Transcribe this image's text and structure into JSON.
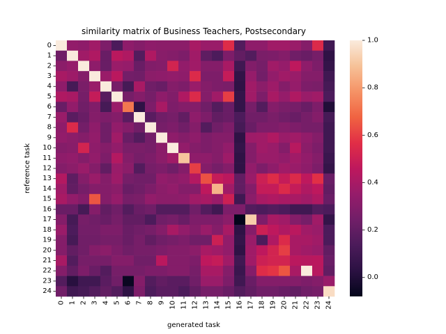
{
  "chart_data": {
    "type": "heatmap",
    "title": "similarity matrix of Business Teachers, Postsecondary",
    "xlabel": "generated task",
    "ylabel": "reference task",
    "x_categories": [
      "0",
      "1",
      "2",
      "3",
      "4",
      "5",
      "6",
      "7",
      "8",
      "9",
      "10",
      "11",
      "12",
      "13",
      "14",
      "15",
      "16",
      "17",
      "18",
      "19",
      "20",
      "21",
      "22",
      "23",
      "24"
    ],
    "y_categories": [
      "0",
      "1",
      "2",
      "3",
      "4",
      "5",
      "6",
      "7",
      "8",
      "9",
      "10",
      "11",
      "12",
      "13",
      "14",
      "15",
      "16",
      "17",
      "18",
      "19",
      "20",
      "21",
      "22",
      "23",
      "24"
    ],
    "colorbar": {
      "min": -0.08,
      "max": 1.0,
      "ticks": [
        0.0,
        0.2,
        0.4,
        0.6,
        0.8,
        1.0
      ],
      "tick_labels": [
        "0.0",
        "0.2",
        "0.4",
        "0.6",
        "0.8",
        "1.0"
      ]
    },
    "values": [
      [
        1.0,
        0.34,
        0.33,
        0.38,
        0.28,
        0.14,
        0.33,
        0.3,
        0.33,
        0.32,
        0.32,
        0.32,
        0.4,
        0.36,
        0.36,
        0.56,
        0.16,
        0.33,
        0.33,
        0.38,
        0.38,
        0.36,
        0.3,
        0.55,
        0.1
      ],
      [
        0.24,
        1.0,
        0.38,
        0.42,
        0.22,
        0.45,
        0.42,
        0.16,
        0.42,
        0.31,
        0.3,
        0.28,
        0.38,
        0.19,
        0.14,
        0.28,
        0.2,
        0.16,
        0.27,
        0.28,
        0.3,
        0.24,
        0.22,
        0.26,
        0.04
      ],
      [
        0.32,
        0.35,
        1.0,
        0.33,
        0.22,
        0.36,
        0.35,
        0.22,
        0.29,
        0.3,
        0.52,
        0.34,
        0.38,
        0.3,
        0.3,
        0.4,
        0.1,
        0.29,
        0.26,
        0.38,
        0.35,
        0.46,
        0.33,
        0.28,
        0.06
      ],
      [
        0.4,
        0.37,
        0.3,
        1.0,
        0.36,
        0.45,
        0.25,
        0.24,
        0.32,
        0.33,
        0.34,
        0.33,
        0.55,
        0.28,
        0.28,
        0.48,
        0.05,
        0.35,
        0.25,
        0.34,
        0.38,
        0.36,
        0.3,
        0.3,
        0.1
      ],
      [
        0.33,
        0.12,
        0.27,
        0.36,
        1.0,
        0.26,
        0.12,
        0.4,
        0.24,
        0.22,
        0.3,
        0.28,
        0.36,
        0.3,
        0.28,
        0.27,
        0.04,
        0.38,
        0.32,
        0.37,
        0.3,
        0.35,
        0.28,
        0.27,
        0.12
      ],
      [
        0.42,
        0.4,
        0.26,
        0.48,
        0.17,
        1.0,
        0.26,
        0.3,
        0.26,
        0.33,
        0.29,
        0.42,
        0.55,
        0.3,
        0.38,
        0.6,
        0.06,
        0.38,
        0.28,
        0.4,
        0.35,
        0.42,
        0.36,
        0.38,
        0.14
      ],
      [
        0.22,
        0.34,
        0.24,
        0.29,
        0.12,
        0.36,
        0.72,
        0.04,
        0.28,
        0.4,
        0.28,
        0.3,
        0.3,
        0.24,
        0.16,
        0.22,
        0.06,
        0.26,
        0.16,
        0.3,
        0.27,
        0.26,
        0.22,
        0.28,
        0.0
      ],
      [
        0.36,
        0.18,
        0.22,
        0.3,
        0.28,
        0.3,
        0.18,
        1.0,
        0.18,
        0.24,
        0.26,
        0.2,
        0.33,
        0.28,
        0.2,
        0.22,
        0.14,
        0.24,
        0.24,
        0.27,
        0.24,
        0.22,
        0.26,
        0.3,
        0.12
      ],
      [
        0.33,
        0.55,
        0.25,
        0.33,
        0.24,
        0.34,
        0.3,
        0.24,
        1.0,
        0.26,
        0.28,
        0.24,
        0.3,
        0.16,
        0.24,
        0.28,
        0.12,
        0.22,
        0.28,
        0.28,
        0.3,
        0.28,
        0.26,
        0.26,
        0.1
      ],
      [
        0.34,
        0.32,
        0.3,
        0.34,
        0.24,
        0.38,
        0.22,
        0.16,
        0.25,
        1.0,
        0.33,
        0.3,
        0.33,
        0.28,
        0.3,
        0.3,
        0.04,
        0.37,
        0.38,
        0.42,
        0.36,
        0.38,
        0.34,
        0.3,
        0.1
      ],
      [
        0.3,
        0.31,
        0.52,
        0.33,
        0.3,
        0.34,
        0.27,
        0.27,
        0.26,
        0.32,
        1.0,
        0.34,
        0.3,
        0.28,
        0.3,
        0.34,
        0.06,
        0.3,
        0.38,
        0.36,
        0.3,
        0.44,
        0.32,
        0.28,
        0.1
      ],
      [
        0.33,
        0.34,
        0.3,
        0.34,
        0.28,
        0.43,
        0.3,
        0.26,
        0.28,
        0.32,
        0.38,
        0.9,
        0.33,
        0.33,
        0.3,
        0.37,
        0.04,
        0.3,
        0.36,
        0.36,
        0.34,
        0.38,
        0.34,
        0.3,
        0.08
      ],
      [
        0.3,
        0.32,
        0.36,
        0.3,
        0.2,
        0.36,
        0.32,
        0.16,
        0.26,
        0.28,
        0.24,
        0.3,
        0.6,
        0.3,
        0.26,
        0.3,
        0.04,
        0.34,
        0.28,
        0.33,
        0.38,
        0.36,
        0.33,
        0.28,
        0.06
      ],
      [
        0.43,
        0.19,
        0.3,
        0.36,
        0.3,
        0.37,
        0.26,
        0.24,
        0.24,
        0.34,
        0.32,
        0.34,
        0.43,
        0.64,
        0.48,
        0.45,
        0.2,
        0.36,
        0.5,
        0.56,
        0.48,
        0.55,
        0.46,
        0.57,
        0.22
      ],
      [
        0.38,
        0.2,
        0.26,
        0.3,
        0.3,
        0.32,
        0.22,
        0.24,
        0.28,
        0.32,
        0.34,
        0.3,
        0.3,
        0.46,
        0.86,
        0.38,
        0.2,
        0.3,
        0.48,
        0.48,
        0.55,
        0.48,
        0.42,
        0.46,
        0.2
      ],
      [
        0.4,
        0.34,
        0.3,
        0.65,
        0.3,
        0.35,
        0.26,
        0.27,
        0.34,
        0.32,
        0.32,
        0.33,
        0.38,
        0.4,
        0.36,
        0.5,
        0.1,
        0.32,
        0.4,
        0.42,
        0.4,
        0.4,
        0.38,
        0.42,
        0.22
      ],
      [
        0.22,
        0.22,
        0.12,
        0.3,
        0.2,
        0.24,
        0.16,
        0.22,
        0.24,
        0.16,
        0.16,
        0.16,
        0.24,
        0.16,
        0.1,
        0.28,
        0.28,
        0.16,
        0.14,
        0.16,
        0.14,
        0.1,
        0.1,
        0.16,
        0.14
      ],
      [
        0.3,
        0.12,
        0.26,
        0.24,
        0.22,
        0.26,
        0.2,
        0.2,
        0.14,
        0.24,
        0.26,
        0.22,
        0.28,
        0.28,
        0.28,
        0.32,
        -0.08,
        0.92,
        0.28,
        0.4,
        0.38,
        0.3,
        0.26,
        0.38,
        0.06
      ],
      [
        0.36,
        0.14,
        0.25,
        0.25,
        0.28,
        0.28,
        0.22,
        0.24,
        0.26,
        0.3,
        0.4,
        0.34,
        0.3,
        0.36,
        0.3,
        0.4,
        0.04,
        0.3,
        0.5,
        0.46,
        0.42,
        0.45,
        0.38,
        0.36,
        0.14
      ],
      [
        0.3,
        0.12,
        0.24,
        0.24,
        0.26,
        0.26,
        0.22,
        0.26,
        0.2,
        0.24,
        0.26,
        0.28,
        0.24,
        0.24,
        0.5,
        0.34,
        0.06,
        0.36,
        0.14,
        0.42,
        0.55,
        0.4,
        0.4,
        0.38,
        0.14
      ],
      [
        0.3,
        0.2,
        0.24,
        0.3,
        0.32,
        0.28,
        0.24,
        0.26,
        0.26,
        0.28,
        0.3,
        0.3,
        0.32,
        0.4,
        0.38,
        0.34,
        0.04,
        0.38,
        0.46,
        0.52,
        0.6,
        0.4,
        0.38,
        0.36,
        0.2
      ],
      [
        0.4,
        0.16,
        0.26,
        0.26,
        0.26,
        0.3,
        0.3,
        0.24,
        0.24,
        0.45,
        0.3,
        0.3,
        0.28,
        0.46,
        0.48,
        0.38,
        0.1,
        0.38,
        0.5,
        0.52,
        0.52,
        0.45,
        0.44,
        0.45,
        0.22
      ],
      [
        0.3,
        0.2,
        0.28,
        0.22,
        0.16,
        0.26,
        0.26,
        0.26,
        0.28,
        0.28,
        0.3,
        0.3,
        0.26,
        0.4,
        0.4,
        0.3,
        0.08,
        0.3,
        0.56,
        0.58,
        0.65,
        0.4,
        1.0,
        0.44,
        0.2
      ],
      [
        0.16,
        0.02,
        0.1,
        0.1,
        0.18,
        0.24,
        -0.06,
        0.3,
        0.16,
        0.2,
        0.18,
        0.18,
        0.24,
        0.36,
        0.36,
        0.28,
        0.1,
        0.22,
        0.3,
        0.3,
        0.3,
        0.3,
        0.28,
        0.3,
        0.36
      ],
      [
        0.24,
        0.1,
        0.12,
        0.16,
        0.2,
        0.16,
        0.04,
        0.28,
        0.14,
        0.18,
        0.18,
        0.14,
        0.2,
        0.26,
        0.26,
        0.22,
        0.16,
        0.2,
        0.24,
        0.24,
        0.22,
        0.2,
        0.24,
        0.26,
        0.96
      ]
    ]
  }
}
